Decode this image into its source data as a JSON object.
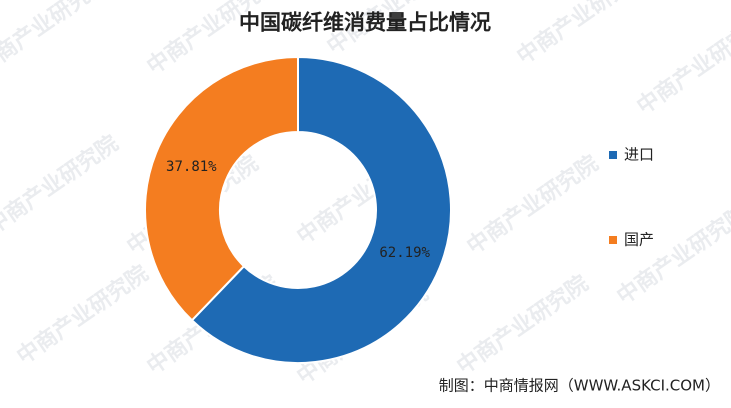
{
  "chart_data": {
    "type": "donut",
    "title": "中国碳纤维消费量占比情况",
    "categories": [
      "进口",
      "国产"
    ],
    "values": [
      62.19,
      37.81
    ],
    "value_labels": [
      "62.19%",
      "37.81%"
    ],
    "colors": [
      "#1e6ab4",
      "#f47d20"
    ],
    "legend": "right",
    "source": "制图：中商情报网（WWW.ASKCI.COM）",
    "watermark": "中商产业研究院"
  }
}
